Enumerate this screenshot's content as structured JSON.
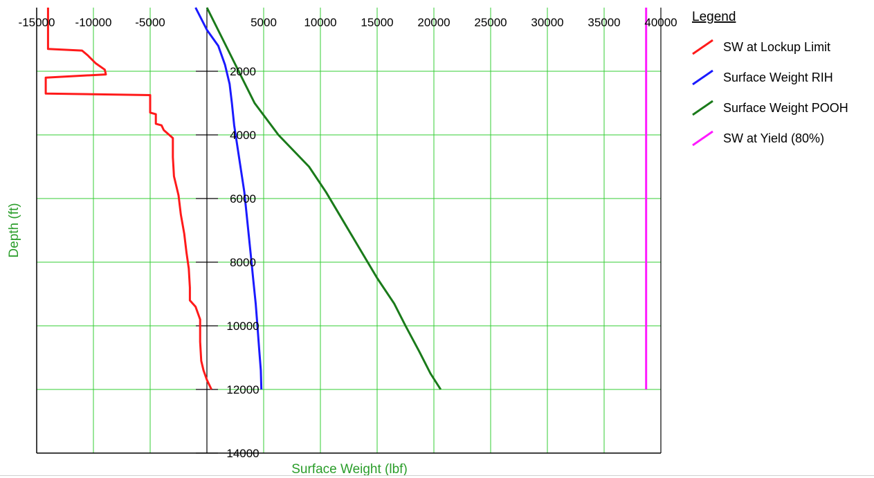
{
  "chart_data": {
    "type": "line",
    "xlabel": "Surface Weight (lbf)",
    "ylabel": "Depth (ft)",
    "xlim": [
      -15000,
      40000
    ],
    "ylim": [
      14000,
      0
    ],
    "y_inverted": true,
    "x_ticks": [
      -15000,
      -10000,
      -5000,
      5000,
      10000,
      15000,
      20000,
      25000,
      30000,
      35000,
      40000
    ],
    "y_ticks": [
      2000,
      4000,
      6000,
      8000,
      10000,
      12000,
      14000
    ],
    "grid": true,
    "grid_color": "#33cc33",
    "legend_placement": "right",
    "legend_title": "Legend",
    "series": [
      {
        "name": "SW at Lockup Limit",
        "color": "#ff1a1a",
        "points": [
          [
            -14000,
            0
          ],
          [
            -14000,
            1300
          ],
          [
            -11000,
            1350
          ],
          [
            -10500,
            1500
          ],
          [
            -9800,
            1750
          ],
          [
            -9000,
            1950
          ],
          [
            -8900,
            2100
          ],
          [
            -14200,
            2200
          ],
          [
            -14200,
            2700
          ],
          [
            -5000,
            2750
          ],
          [
            -5000,
            3300
          ],
          [
            -4500,
            3350
          ],
          [
            -4500,
            3650
          ],
          [
            -4000,
            3700
          ],
          [
            -3800,
            3850
          ],
          [
            -3000,
            4100
          ],
          [
            -3000,
            4700
          ],
          [
            -2900,
            5300
          ],
          [
            -2500,
            5900
          ],
          [
            -2300,
            6500
          ],
          [
            -2000,
            7100
          ],
          [
            -1800,
            7700
          ],
          [
            -1600,
            8200
          ],
          [
            -1500,
            8800
          ],
          [
            -1500,
            9200
          ],
          [
            -1000,
            9400
          ],
          [
            -600,
            9800
          ],
          [
            -600,
            10500
          ],
          [
            -500,
            11100
          ],
          [
            -300,
            11400
          ],
          [
            0,
            11700
          ],
          [
            400,
            12000
          ]
        ]
      },
      {
        "name": "Surface Weight RIH",
        "color": "#1a1aff",
        "points": [
          [
            -1000,
            0
          ],
          [
            0,
            700
          ],
          [
            1000,
            1200
          ],
          [
            1600,
            1800
          ],
          [
            2000,
            2400
          ],
          [
            2200,
            3000
          ],
          [
            2400,
            3700
          ],
          [
            2700,
            4400
          ],
          [
            3000,
            5100
          ],
          [
            3300,
            5800
          ],
          [
            3500,
            6500
          ],
          [
            3700,
            7200
          ],
          [
            3900,
            7900
          ],
          [
            4100,
            8600
          ],
          [
            4300,
            9300
          ],
          [
            4450,
            10000
          ],
          [
            4600,
            10700
          ],
          [
            4750,
            11400
          ],
          [
            4800,
            12000
          ]
        ]
      },
      {
        "name": "Surface Weight POOH",
        "color": "#1a7a1a",
        "points": [
          [
            0,
            0
          ],
          [
            1400,
            1000
          ],
          [
            2800,
            2000
          ],
          [
            4200,
            3000
          ],
          [
            6300,
            4000
          ],
          [
            9000,
            5000
          ],
          [
            10500,
            5800
          ],
          [
            12000,
            6700
          ],
          [
            13500,
            7600
          ],
          [
            15000,
            8500
          ],
          [
            16500,
            9300
          ],
          [
            17500,
            10000
          ],
          [
            18700,
            10800
          ],
          [
            19700,
            11500
          ],
          [
            20600,
            12000
          ]
        ]
      },
      {
        "name": "SW at Yield (80%)",
        "color": "#ff1aff",
        "points": [
          [
            38700,
            0
          ],
          [
            38700,
            12000
          ]
        ]
      }
    ]
  }
}
